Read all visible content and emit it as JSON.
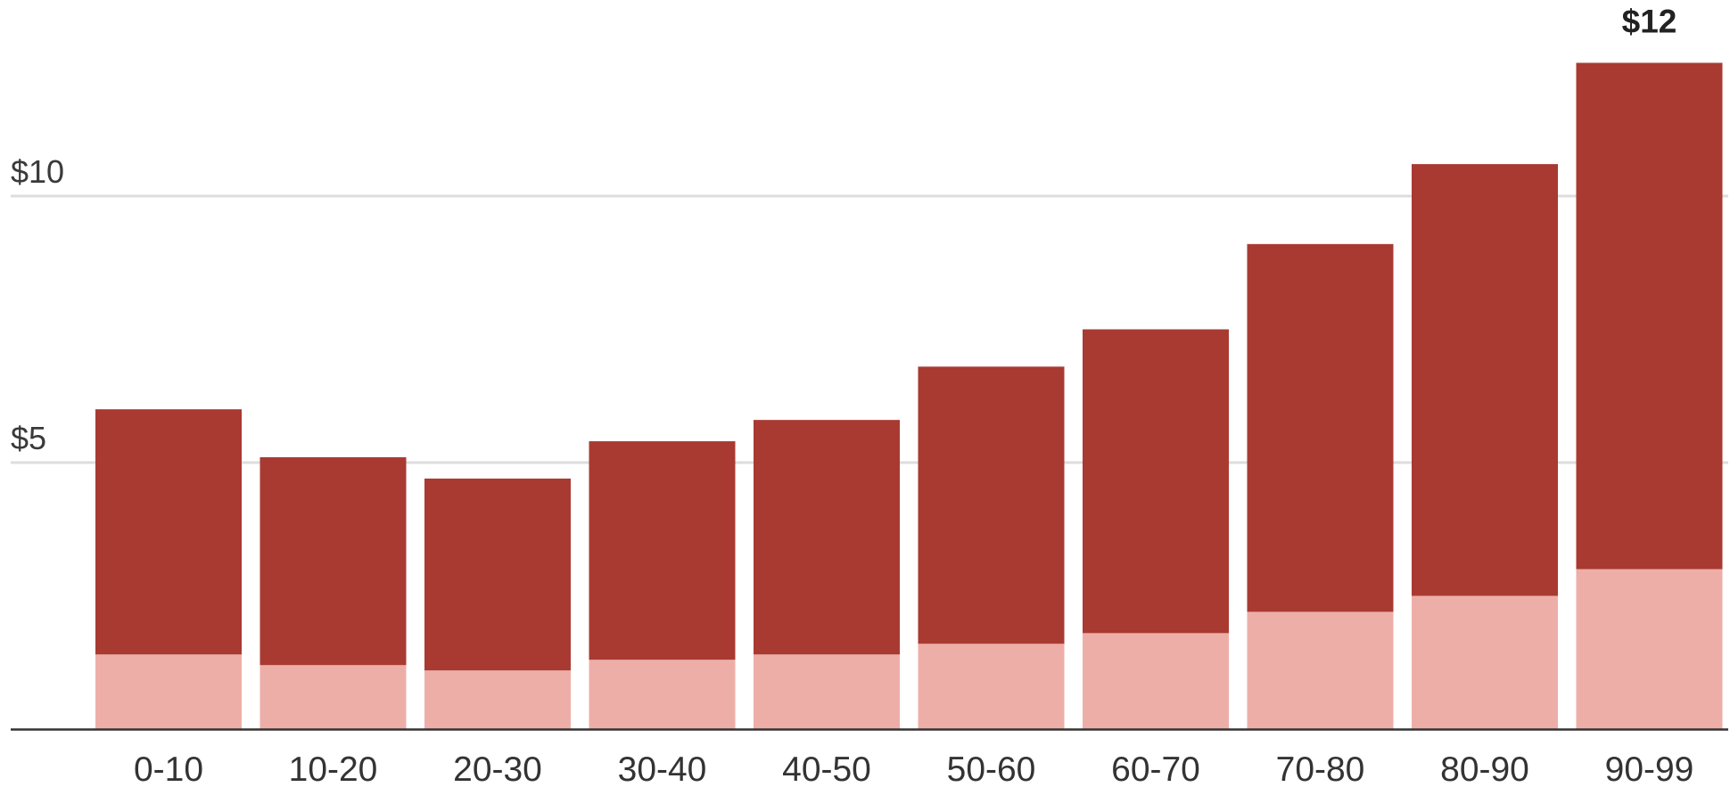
{
  "chart_data": {
    "type": "bar",
    "stacked": true,
    "categories": [
      "0-10",
      "10-20",
      "20-30",
      "30-40",
      "40-50",
      "50-60",
      "60-70",
      "70-80",
      "80-90",
      "90-99"
    ],
    "series": [
      {
        "values": [
          1.4,
          1.2,
          1.1,
          1.3,
          1.4,
          1.6,
          1.8,
          2.2,
          2.5,
          3.0
        ]
      },
      {
        "values": [
          4.6,
          3.9,
          3.6,
          4.1,
          4.4,
          5.2,
          5.7,
          6.9,
          8.1,
          9.5
        ]
      }
    ],
    "totals": [
      6.0,
      5.1,
      4.7,
      5.4,
      5.8,
      6.8,
      7.5,
      9.1,
      10.6,
      12.5
    ],
    "ylim": [
      0,
      13
    ],
    "yticks": [
      {
        "value": 5,
        "label": "$5"
      },
      {
        "value": 10,
        "label": "$10"
      }
    ],
    "annotation": {
      "category": "90-99",
      "label": "$12"
    },
    "grid": true,
    "colors": {
      "series_0": "#eeaea8",
      "series_1": "#a83a32",
      "grid": "#dddddd",
      "axis": "#333333"
    }
  }
}
